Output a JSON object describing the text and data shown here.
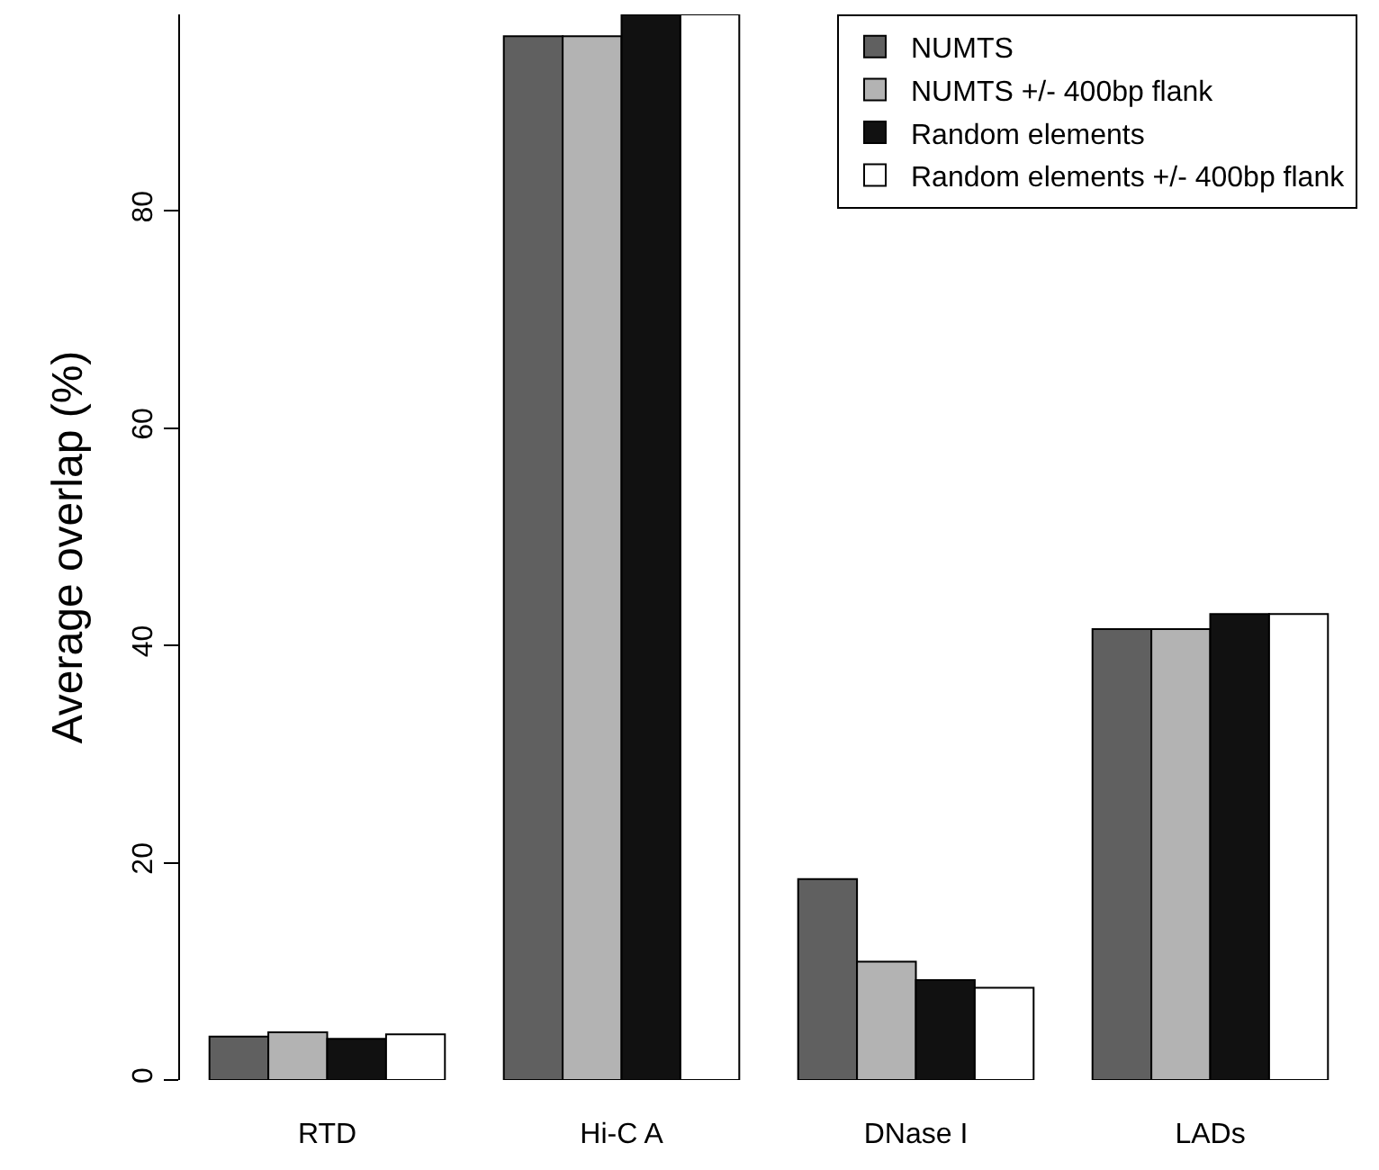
{
  "chart_data": {
    "type": "bar",
    "ylabel": "Average overlap (%)",
    "categories": [
      "RTD",
      "Hi-C A",
      "DNase I",
      "LADs"
    ],
    "series": [
      {
        "name": "NUMTS",
        "color": "#606060",
        "values": [
          4.0,
          96.1,
          18.5,
          41.5
        ]
      },
      {
        "name": "NUMTS +/- 400bp flank",
        "color": "#b3b3b3",
        "values": [
          4.4,
          96.1,
          10.9,
          41.5
        ]
      },
      {
        "name": "Random elements",
        "color": "#111111",
        "values": [
          3.8,
          98.1,
          9.2,
          42.9
        ]
      },
      {
        "name": "Random elements +/- 400bp flank",
        "color": "#ffffff",
        "values": [
          4.2,
          98.1,
          8.5,
          42.9
        ]
      }
    ],
    "ylim": [
      0,
      98.1
    ],
    "yticks": [
      0,
      20,
      40,
      60,
      80
    ],
    "legend": "top right"
  }
}
